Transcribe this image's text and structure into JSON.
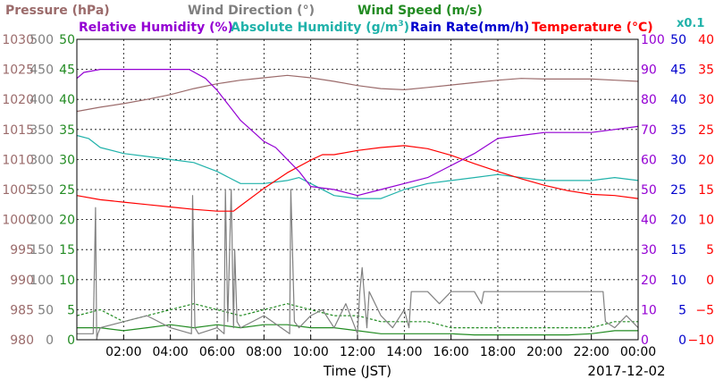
{
  "legend": {
    "pressure": "Pressure (hPa)",
    "wind_direction": "Wind Direction (°)",
    "wind_speed": "Wind Speed (m/s)",
    "relative_humidity": "Relative Humidity (%)",
    "absolute_humidity_prefix": "Absolute Humidity (g/m",
    "absolute_humidity_sup": "3",
    "absolute_humidity_suffix": ")",
    "rain_rate": "Rain Rate(mm/h)",
    "temperature": "Temperature (°C)",
    "scale_note": "x0.1"
  },
  "colors": {
    "pressure": "#9b6b6b",
    "wind_direction": "#808080",
    "wind_speed": "#228b22",
    "relative_humidity": "#9400d3",
    "absolute_humidity": "#20b2aa",
    "rain_rate": "#0000cd",
    "temperature": "#ff0000",
    "grid": "#000000"
  },
  "chart_data": {
    "type": "line",
    "xlabel": "Time (JST)",
    "date_label": "2017-12-02",
    "x_ticks": [
      "02:00",
      "04:00",
      "06:00",
      "08:00",
      "10:00",
      "12:00",
      "14:00",
      "16:00",
      "18:00",
      "20:00",
      "22:00",
      "00:00"
    ],
    "xlim_hours": [
      0,
      24
    ],
    "grid": true,
    "axes": {
      "pressure": {
        "side": "left",
        "ylim": [
          980,
          1030
        ],
        "ticks": [
          "980",
          "985",
          "990",
          "995",
          "1000",
          "1005",
          "1010",
          "1015",
          "1020",
          "1025",
          "1030"
        ]
      },
      "wind_direction": {
        "side": "left",
        "ylim": [
          0,
          500
        ],
        "ticks": [
          "0",
          "50",
          "100",
          "150",
          "200",
          "250",
          "300",
          "350",
          "400",
          "450",
          "500"
        ]
      },
      "wind_speed": {
        "side": "left",
        "ylim": [
          0,
          50
        ],
        "ticks": [
          "0",
          "5",
          "10",
          "15",
          "20",
          "25",
          "30",
          "35",
          "40",
          "45",
          "50"
        ]
      },
      "relative_humidity": {
        "side": "right",
        "ylim": [
          0,
          100
        ],
        "ticks": [
          "0",
          "10",
          "20",
          "30",
          "40",
          "50",
          "60",
          "70",
          "80",
          "90",
          "100"
        ]
      },
      "rain_rate": {
        "side": "right",
        "ylim": [
          0,
          50
        ],
        "ticks": [
          "0",
          "5",
          "10",
          "15",
          "20",
          "25",
          "30",
          "35",
          "40",
          "45",
          "50"
        ]
      },
      "temperature": {
        "side": "right",
        "ylim": [
          -10,
          40
        ],
        "ticks": [
          "−10",
          "−5",
          "0",
          "5",
          "10",
          "15",
          "20",
          "25",
          "30",
          "35",
          "40"
        ]
      }
    },
    "series": [
      {
        "name": "Pressure (hPa)",
        "key": "pressure",
        "axis": "pressure",
        "style": "solid",
        "x": [
          0,
          1,
          2,
          3,
          4,
          5,
          6,
          7,
          7.5,
          8,
          9,
          10,
          11,
          12,
          13,
          14,
          15,
          16,
          17,
          18,
          19,
          20,
          21,
          22,
          23,
          24
        ],
        "y": [
          1018.0,
          1018.7,
          1019.3,
          1020.0,
          1020.8,
          1021.8,
          1022.6,
          1023.2,
          1023.4,
          1023.6,
          1024.0,
          1023.6,
          1023.0,
          1022.3,
          1021.8,
          1021.6,
          1022.0,
          1022.4,
          1022.8,
          1023.2,
          1023.5,
          1023.4,
          1023.4,
          1023.4,
          1023.2,
          1023.0
        ]
      },
      {
        "name": "Relative Humidity (%)",
        "key": "relative_humidity",
        "axis": "relative_humidity",
        "style": "solid",
        "x": [
          0,
          0.3,
          1,
          2,
          3,
          4,
          4.8,
          5.5,
          6,
          7,
          8,
          8.5,
          9,
          9.5,
          10,
          11,
          12,
          13,
          14,
          15,
          16,
          17,
          18,
          19,
          20,
          21,
          22,
          23,
          24
        ],
        "y": [
          87,
          89,
          90,
          90,
          90,
          90,
          90,
          87,
          83,
          73,
          66,
          64,
          60,
          56,
          51,
          50,
          48,
          50,
          52,
          54,
          58,
          62,
          67,
          68,
          69,
          69,
          69,
          70,
          71
        ]
      },
      {
        "name": "Absolute Humidity (g/m3)",
        "key": "absolute_humidity",
        "axis": "relative_humidity",
        "style": "solid",
        "x": [
          0,
          0.5,
          1,
          2,
          3,
          4,
          5,
          6,
          6.5,
          7,
          8,
          9,
          9.5,
          10,
          11,
          12,
          13,
          14,
          15,
          16,
          17,
          18,
          19,
          20,
          21,
          22,
          23,
          24
        ],
        "y": [
          68,
          67,
          64,
          62,
          61,
          60,
          59,
          56,
          54,
          52,
          52,
          53,
          54,
          52,
          48,
          47,
          47,
          50,
          52,
          53,
          54,
          55,
          54,
          53,
          53,
          53,
          54,
          53
        ]
      },
      {
        "name": "Temperature (°C)",
        "key": "temperature",
        "axis": "temperature",
        "style": "solid",
        "x": [
          0,
          1,
          2,
          3,
          4,
          5,
          6,
          6.7,
          7,
          8,
          9,
          10,
          10.5,
          11,
          12,
          13,
          14,
          15,
          16,
          17,
          18,
          19,
          20,
          21,
          22,
          23,
          24
        ],
        "y": [
          14.0,
          13.3,
          12.9,
          12.5,
          12.1,
          11.7,
          11.4,
          11.4,
          12.3,
          15.2,
          17.8,
          19.9,
          20.8,
          20.8,
          21.5,
          22.0,
          22.3,
          21.8,
          20.7,
          19.3,
          18.0,
          16.8,
          15.7,
          14.8,
          14.2,
          14.0,
          13.5
        ]
      },
      {
        "name": "Wind Direction (°)",
        "key": "wind_direction",
        "axis": "wind_direction",
        "style": "solid",
        "x": [
          0,
          0.7,
          0.8,
          0.85,
          0.9,
          1.0,
          2.0,
          3.0,
          4.0,
          4.9,
          4.95,
          5.05,
          5.2,
          6.0,
          6.3,
          6.35,
          6.45,
          6.6,
          6.7,
          6.75,
          6.85,
          7.0,
          8.0,
          9.1,
          9.15,
          9.3,
          9.5,
          10.0,
          10.5,
          11.0,
          11.5,
          12.0,
          12.1,
          12.2,
          12.4,
          12.5,
          13.0,
          13.5,
          14.0,
          14.2,
          14.3,
          15.0,
          15.5,
          16.0,
          17.0,
          17.3,
          17.4,
          18.0,
          18.5,
          19.0,
          19.5,
          20.0,
          21.0,
          22.0,
          22.5,
          22.6,
          23.0,
          23.5,
          24.0
        ],
        "y": [
          10,
          10,
          220,
          0,
          10,
          20,
          30,
          40,
          20,
          10,
          240,
          20,
          10,
          20,
          10,
          250,
          30,
          250,
          20,
          150,
          30,
          20,
          40,
          10,
          250,
          30,
          20,
          40,
          50,
          20,
          60,
          10,
          80,
          120,
          20,
          80,
          40,
          20,
          50,
          20,
          80,
          80,
          60,
          80,
          80,
          60,
          80,
          80,
          80,
          80,
          80,
          80,
          80,
          80,
          80,
          30,
          20,
          40,
          20
        ]
      },
      {
        "name": "Wind Speed (m/s)",
        "key": "wind_speed",
        "axis": "wind_speed",
        "style": "dashed",
        "x": [
          0,
          1,
          2,
          3,
          4,
          5,
          6,
          7,
          8,
          9,
          10,
          11,
          12,
          13,
          14,
          15,
          16,
          17,
          18,
          19,
          20,
          21,
          22,
          23,
          24
        ],
        "y": [
          4,
          5,
          3,
          4,
          5,
          6,
          5,
          4,
          5,
          6,
          5,
          4,
          4,
          3,
          3,
          3,
          2,
          2,
          2,
          2,
          2,
          2,
          2,
          3,
          3
        ]
      },
      {
        "name": "Wind Speed (m/s)",
        "key": "wind_speed_mean",
        "axis": "wind_speed",
        "style": "solid",
        "x": [
          0,
          1,
          2,
          3,
          4,
          5,
          6,
          7,
          8,
          9,
          10,
          11,
          12,
          13,
          14,
          15,
          16,
          17,
          18,
          19,
          20,
          21,
          22,
          23,
          24
        ],
        "y": [
          2,
          2,
          1.5,
          2,
          2.5,
          2,
          2.5,
          2,
          2.5,
          2.5,
          2,
          2,
          1.5,
          1,
          1,
          1,
          1,
          0.8,
          0.8,
          0.8,
          0.8,
          0.8,
          1,
          1.5,
          1.5
        ]
      }
    ]
  }
}
